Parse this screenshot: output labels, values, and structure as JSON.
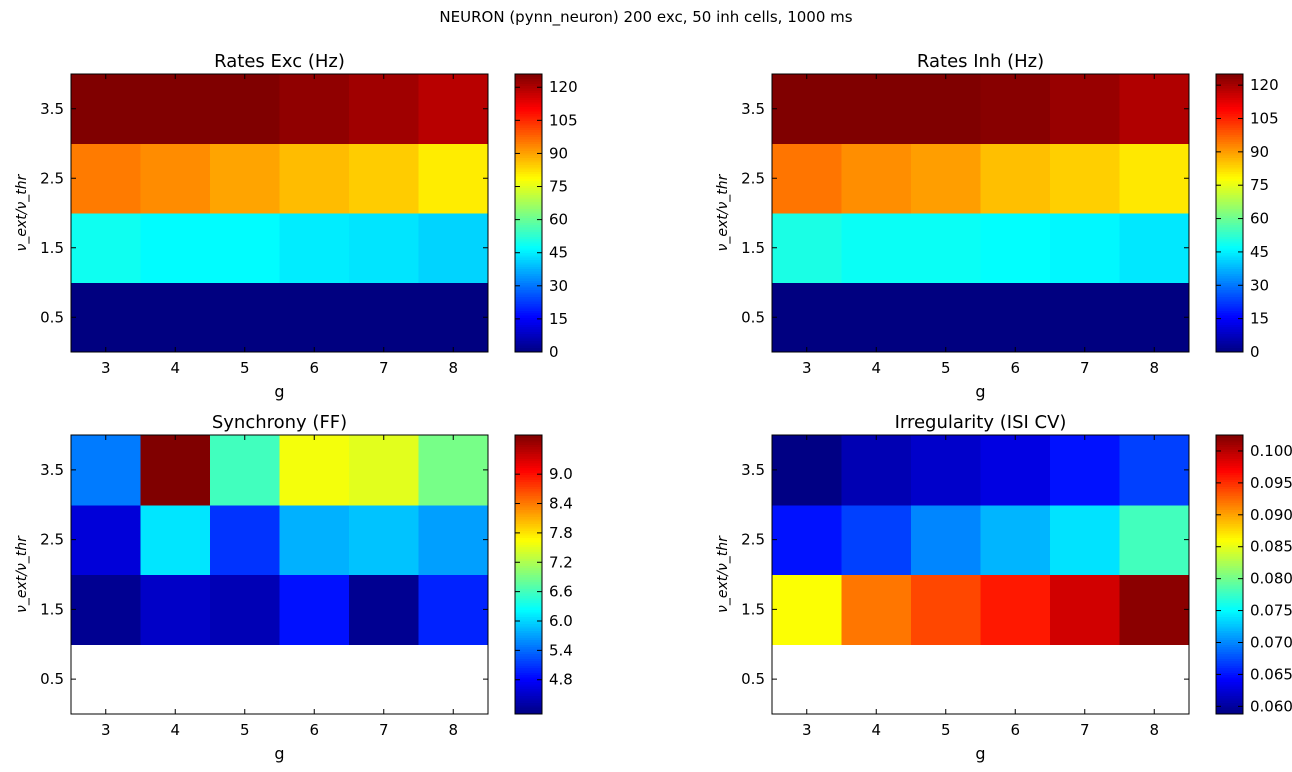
{
  "figure": {
    "suptitle": "NEURON (pynn_neuron) 200 exc, 50 inh cells, 1000 ms"
  },
  "chart_data": [
    {
      "type": "heatmap",
      "title": "Rates Exc (Hz)",
      "xlabel": "g",
      "ylabel": "ν_ext/ν_thr",
      "x": [
        3,
        4,
        5,
        6,
        7,
        8
      ],
      "y": [
        0.5,
        1.5,
        2.5,
        3.5
      ],
      "xtick_labels": [
        "3",
        "4",
        "5",
        "6",
        "7",
        "8"
      ],
      "ytick_labels": [
        "0.5",
        "1.5",
        "2.5",
        "3.5"
      ],
      "values": [
        [
          0,
          0,
          0,
          0,
          0,
          0
        ],
        [
          49,
          47,
          47,
          45,
          44,
          42
        ],
        [
          95,
          93,
          90,
          87,
          85,
          81
        ],
        [
          131,
          128,
          126,
          124,
          122,
          119
        ]
      ],
      "vmin": 0,
      "vmax": 126,
      "colorbar_ticks": [
        "0",
        "15",
        "30",
        "45",
        "60",
        "75",
        "90",
        "105",
        "120"
      ],
      "colormap": "jet",
      "missing_color": "#ffffff"
    },
    {
      "type": "heatmap",
      "title": "Rates Inh (Hz)",
      "xlabel": "g",
      "ylabel": "ν_ext/ν_thr",
      "x": [
        3,
        4,
        5,
        6,
        7,
        8
      ],
      "y": [
        0.5,
        1.5,
        2.5,
        3.5
      ],
      "xtick_labels": [
        "3",
        "4",
        "5",
        "6",
        "7",
        "8"
      ],
      "ytick_labels": [
        "0.5",
        "1.5",
        "2.5",
        "3.5"
      ],
      "values": [
        [
          0,
          0,
          0,
          0,
          0,
          0
        ],
        [
          50,
          48,
          48,
          47,
          46,
          44
        ],
        [
          95,
          92,
          90,
          86,
          84,
          81
        ],
        [
          131,
          128,
          126,
          124,
          122,
          119
        ]
      ],
      "vmin": 0,
      "vmax": 125,
      "colorbar_ticks": [
        "0",
        "15",
        "30",
        "45",
        "60",
        "75",
        "90",
        "105",
        "120"
      ],
      "colormap": "jet",
      "missing_color": "#ffffff"
    },
    {
      "type": "heatmap",
      "title": "Synchrony (FF)",
      "xlabel": "g",
      "ylabel": "ν_ext/ν_thr",
      "x": [
        3,
        4,
        5,
        6,
        7,
        8
      ],
      "y": [
        0.5,
        1.5,
        2.5,
        3.5
      ],
      "xtick_labels": [
        "3",
        "4",
        "5",
        "6",
        "7",
        "8"
      ],
      "ytick_labels": [
        "0.5",
        "1.5",
        "2.5",
        "3.5"
      ],
      "values": [
        [
          null,
          null,
          null,
          null,
          null,
          null
        ],
        [
          4.2,
          4.5,
          4.4,
          4.9,
          4.2,
          5.0
        ],
        [
          4.6,
          6.1,
          5.1,
          5.8,
          5.9,
          5.7
        ],
        [
          5.5,
          9.8,
          6.6,
          7.6,
          7.5,
          6.9
        ]
      ],
      "vmin": 4.1,
      "vmax": 9.8,
      "colorbar_ticks": [
        "4.8",
        "5.4",
        "6.0",
        "6.6",
        "7.2",
        "7.8",
        "8.4",
        "9.0"
      ],
      "colormap": "jet",
      "missing_color": "#ffffff"
    },
    {
      "type": "heatmap",
      "title": "Irregularity (ISI CV)",
      "xlabel": "g",
      "ylabel": "ν_ext/ν_thr",
      "x": [
        3,
        4,
        5,
        6,
        7,
        8
      ],
      "y": [
        0.5,
        1.5,
        2.5,
        3.5
      ],
      "xtick_labels": [
        "3",
        "4",
        "5",
        "6",
        "7",
        "8"
      ],
      "ytick_labels": [
        "0.5",
        "1.5",
        "2.5",
        "3.5"
      ],
      "values": [
        [
          null,
          null,
          null,
          null,
          null,
          null
        ],
        [
          0.086,
          0.092,
          0.094,
          0.096,
          0.099,
          0.102
        ],
        [
          0.065,
          0.067,
          0.07,
          0.072,
          0.074,
          0.078
        ],
        [
          0.059,
          0.061,
          0.062,
          0.063,
          0.065,
          0.067
        ]
      ],
      "vmin": 0.0588,
      "vmax": 0.1025,
      "colorbar_ticks": [
        "0.060",
        "0.065",
        "0.070",
        "0.075",
        "0.080",
        "0.085",
        "0.090",
        "0.095",
        "0.100"
      ],
      "colormap": "jet",
      "missing_color": "#ffffff"
    }
  ]
}
